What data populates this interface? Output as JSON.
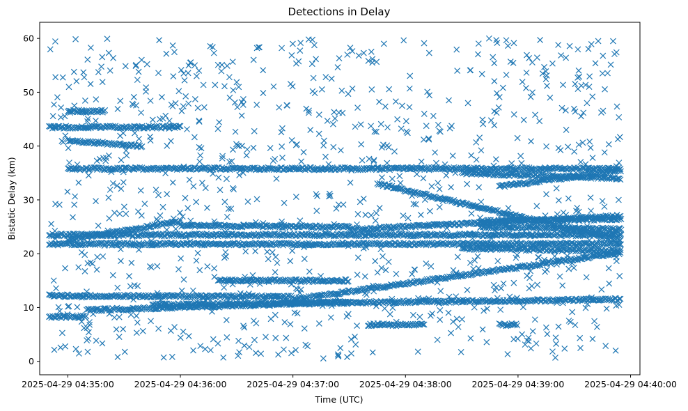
{
  "chart_data": {
    "type": "scatter",
    "title": "Detections in Delay",
    "xlabel": "Time (UTC)",
    "ylabel": "Bistatic Delay (km)",
    "x_unit": "time",
    "xlim": [
      "2025-04-29 04:34:45",
      "2025-04-29 04:40:05"
    ],
    "ylim": [
      -2.5,
      63
    ],
    "x_ticks": [
      {
        "value": "2025-04-29 04:35:00",
        "label": "2025-04-29 04:35:00"
      },
      {
        "value": "2025-04-29 04:36:00",
        "label": "2025-04-29 04:36:00"
      },
      {
        "value": "2025-04-29 04:37:00",
        "label": "2025-04-29 04:37:00"
      },
      {
        "value": "2025-04-29 04:38:00",
        "label": "2025-04-29 04:38:00"
      },
      {
        "value": "2025-04-29 04:39:00",
        "label": "2025-04-29 04:39:00"
      },
      {
        "value": "2025-04-29 04:40:00",
        "label": "2025-04-29 04:40:00"
      }
    ],
    "y_ticks": [
      0,
      10,
      20,
      30,
      40,
      50,
      60
    ],
    "grid": false,
    "legend": "none",
    "marker": "x",
    "color": "#1f77b4",
    "series": [
      {
        "tracks": [
          {
            "start": "2025-04-29 04:34:50",
            "end": "2025-04-29 04:39:55",
            "y_start": 23.5,
            "y_end": 23.5
          },
          {
            "start": "2025-04-29 04:34:50",
            "end": "2025-04-29 04:37:00",
            "y_start": 12.2,
            "y_end": 12.0
          },
          {
            "start": "2025-04-29 04:37:00",
            "end": "2025-04-29 04:39:55",
            "y_start": 11.5,
            "y_end": 20.2
          },
          {
            "start": "2025-04-29 04:35:45",
            "end": "2025-04-29 04:39:55",
            "y_start": 10.5,
            "y_end": 11.5
          },
          {
            "start": "2025-04-29 04:35:10",
            "end": "2025-04-29 04:37:30",
            "y_start": 9.5,
            "y_end": 11.0
          },
          {
            "start": "2025-04-29 04:36:20",
            "end": "2025-04-29 04:37:30",
            "y_start": 15.0,
            "y_end": 15.0
          },
          {
            "start": "2025-04-29 04:35:00",
            "end": "2025-04-29 04:36:00",
            "y_start": 22.5,
            "y_end": 26.0
          },
          {
            "start": "2025-04-29 04:36:00",
            "end": "2025-04-29 04:37:30",
            "y_start": 25.2,
            "y_end": 25.0
          },
          {
            "start": "2025-04-29 04:37:30",
            "end": "2025-04-29 04:39:55",
            "y_start": 24.5,
            "y_end": 27.0
          },
          {
            "start": "2025-04-29 04:35:00",
            "end": "2025-04-29 04:35:40",
            "y_start": 41.0,
            "y_end": 40.0
          },
          {
            "start": "2025-04-29 04:35:00",
            "end": "2025-04-29 04:39:55",
            "y_start": 35.8,
            "y_end": 35.8
          },
          {
            "start": "2025-04-29 04:37:45",
            "end": "2025-04-29 04:39:55",
            "y_start": 33.0,
            "y_end": 22.5
          },
          {
            "start": "2025-04-29 04:38:30",
            "end": "2025-04-29 04:39:55",
            "y_start": 35.0,
            "y_end": 34.0
          },
          {
            "start": "2025-04-29 04:38:50",
            "end": "2025-04-29 04:39:55",
            "y_start": 32.5,
            "y_end": 35.5
          },
          {
            "start": "2025-04-29 04:34:50",
            "end": "2025-04-29 04:35:30",
            "y_start": 43.5,
            "y_end": 43.5
          },
          {
            "start": "2025-04-29 04:35:30",
            "end": "2025-04-29 04:36:00",
            "y_start": 43.5,
            "y_end": 43.5
          },
          {
            "start": "2025-04-29 04:34:50",
            "end": "2025-04-29 04:39:55",
            "y_start": 21.8,
            "y_end": 21.8
          },
          {
            "start": "2025-04-29 04:37:40",
            "end": "2025-04-29 04:38:10",
            "y_start": 6.8,
            "y_end": 6.8
          },
          {
            "start": "2025-04-29 04:38:50",
            "end": "2025-04-29 04:39:00",
            "y_start": 6.8,
            "y_end": 6.8
          },
          {
            "start": "2025-04-29 04:34:50",
            "end": "2025-04-29 04:35:10",
            "y_start": 8.3,
            "y_end": 8.3
          },
          {
            "start": "2025-04-29 04:35:00",
            "end": "2025-04-29 04:35:20",
            "y_start": 46.5,
            "y_end": 46.5
          },
          {
            "start": "2025-04-29 04:38:40",
            "end": "2025-04-29 04:39:55",
            "y_start": 26.0,
            "y_end": 26.5
          },
          {
            "start": "2025-04-29 04:38:40",
            "end": "2025-04-29 04:39:55",
            "y_start": 25.0,
            "y_end": 24.5
          },
          {
            "start": "2025-04-29 04:38:30",
            "end": "2025-04-29 04:39:55",
            "y_start": 21.0,
            "y_end": 20.5
          }
        ],
        "scatter": {
          "start": "2025-04-29 04:34:50",
          "end": "2025-04-29 04:39:55",
          "y_min": 0.5,
          "y_max": 60.0,
          "count": 1000
        }
      }
    ]
  }
}
